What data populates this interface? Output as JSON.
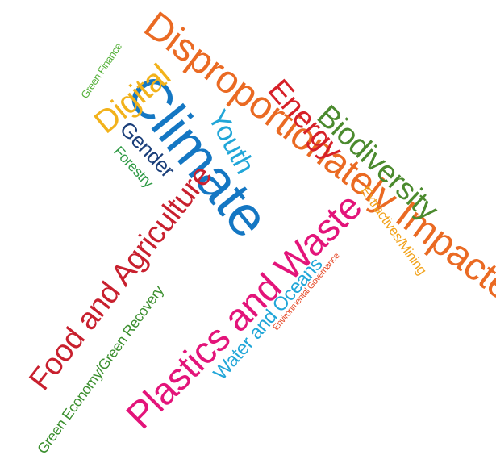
{
  "words": [
    {
      "text": "Disproportionately Impacted",
      "color": "#ea6a23"
    },
    {
      "text": "Climate",
      "color": "#1477c3"
    },
    {
      "text": "Youth",
      "color": "#21a6d8"
    },
    {
      "text": "Energy",
      "color": "#d62028"
    },
    {
      "text": "Biodiversity",
      "color": "#4b8a2e"
    },
    {
      "text": "Digital",
      "color": "#f2b21b"
    },
    {
      "text": "Green Finance",
      "color": "#56b13b"
    },
    {
      "text": "Gender",
      "color": "#1b3f7a"
    },
    {
      "text": "Forestry",
      "color": "#2f9a45"
    },
    {
      "text": "Extractives/Mining",
      "color": "#f2a31d"
    },
    {
      "text": "Food and Agriculture",
      "color": "#c8202e"
    },
    {
      "text": "Green Economy/Green Recovery",
      "color": "#3c8f2f"
    },
    {
      "text": "Plastics and Waste",
      "color": "#e3147a"
    },
    {
      "text": "Water and Oceans",
      "color": "#21a6d8"
    },
    {
      "text": "Environmental Governance",
      "color": "#e54b2a"
    }
  ]
}
